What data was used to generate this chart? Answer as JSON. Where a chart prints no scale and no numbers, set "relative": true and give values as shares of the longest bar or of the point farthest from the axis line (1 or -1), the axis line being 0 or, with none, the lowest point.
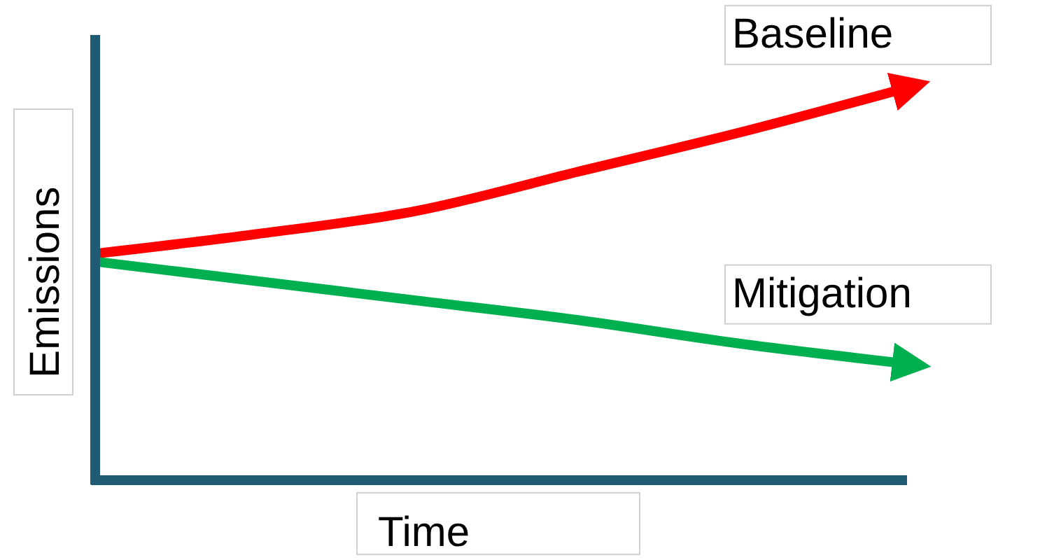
{
  "chart_data": {
    "type": "line",
    "relative": true,
    "xlabel": "Time",
    "ylabel": "Emissions",
    "categories": [
      null,
      null,
      null,
      null,
      null,
      null
    ],
    "series": [
      {
        "name": "Baseline",
        "color": "#ff0000",
        "values": [
          0.58,
          0.63,
          0.69,
          0.79,
          0.89,
          1
        ]
      },
      {
        "name": "Mitigation",
        "color": "#00b050",
        "values": [
          0.56,
          0.51,
          0.46,
          0.41,
          0.35,
          0.3
        ]
      }
    ],
    "legend": false
  }
}
